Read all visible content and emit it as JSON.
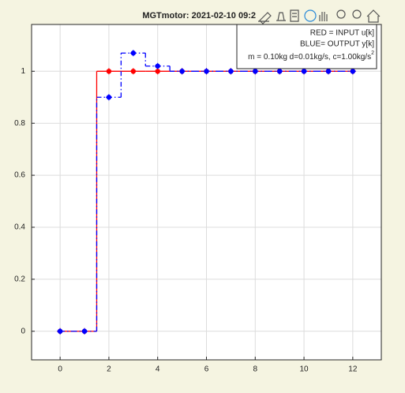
{
  "chart_data": {
    "type": "stairs",
    "title": "MGTmotor: 2021-02-10 09:2",
    "annotation": [
      "RED = INPUT u[k]",
      "BLUE= OUTPUT y[k]",
      {
        "text": "m = 0.10kg d=0.01kg/s, c=1.00kg/s",
        "sup": "2"
      }
    ],
    "x": [
      0,
      1,
      2,
      3,
      4,
      5,
      6,
      7,
      8,
      9,
      10,
      11,
      12
    ],
    "series": [
      {
        "color": "#ff0000",
        "dash": "solid",
        "values": [
          0,
          0,
          1,
          1,
          1,
          1,
          1,
          1,
          1,
          1,
          1,
          1,
          1
        ]
      },
      {
        "color": "#0000ff",
        "dash": "dashdot",
        "values": [
          0,
          0,
          0.9,
          1.07,
          1.02,
          1.0,
          1.0,
          1.0,
          1.0,
          1.0,
          1.0,
          1.0,
          1.0
        ]
      }
    ],
    "xlim": [
      -1.17,
      13.17
    ],
    "ylim": [
      -0.11,
      1.18
    ],
    "xticks": [
      0,
      2,
      4,
      6,
      8,
      10,
      12
    ],
    "yticks": [
      0,
      0.2,
      0.4,
      0.6,
      0.8,
      1
    ],
    "grid": true
  }
}
